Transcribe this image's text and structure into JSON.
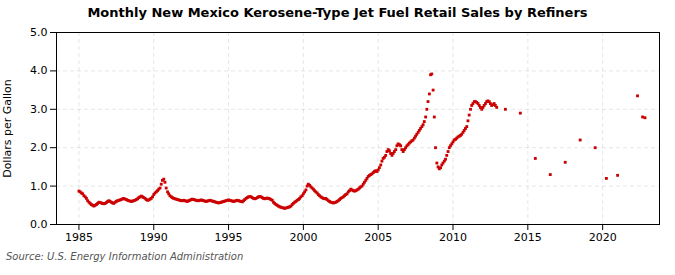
{
  "chart_data": {
    "type": "scatter",
    "title": "Monthly New Mexico Kerosene-Type Jet Fuel Retail Sales by Refiners",
    "ylabel": "Dollars per Gallon",
    "source": "Source: U.S. Energy Information Administration",
    "xlim": [
      1983.5,
      2023.8
    ],
    "ylim": [
      0.0,
      5.0
    ],
    "xticks": [
      1985,
      1990,
      1995,
      2000,
      2005,
      2010,
      2015,
      2020
    ],
    "yticks": [
      {
        "value": 0.0,
        "label": "0.0"
      },
      {
        "value": 1.0,
        "label": "1.0"
      },
      {
        "value": 2.0,
        "label": "2.0"
      },
      {
        "value": 3.0,
        "label": "3.0"
      },
      {
        "value": 4.0,
        "label": "4.0"
      },
      {
        "value": 5.0,
        "label": "5.0"
      }
    ],
    "grid": true,
    "color": "#cc0000",
    "marker": "square",
    "x": [
      1985.0,
      1985.08,
      1985.17,
      1985.25,
      1985.33,
      1985.42,
      1985.5,
      1985.58,
      1985.67,
      1985.75,
      1985.83,
      1985.92,
      1986.0,
      1986.08,
      1986.17,
      1986.25,
      1986.33,
      1986.42,
      1986.5,
      1986.58,
      1986.67,
      1986.75,
      1986.83,
      1986.92,
      1987.0,
      1987.08,
      1987.17,
      1987.25,
      1987.33,
      1987.42,
      1987.5,
      1987.58,
      1987.67,
      1987.75,
      1987.83,
      1987.92,
      1988.0,
      1988.08,
      1988.17,
      1988.25,
      1988.33,
      1988.42,
      1988.5,
      1988.58,
      1988.67,
      1988.75,
      1988.83,
      1988.92,
      1989.0,
      1989.08,
      1989.17,
      1989.25,
      1989.33,
      1989.42,
      1989.5,
      1989.58,
      1989.67,
      1989.75,
      1989.83,
      1989.92,
      1990.0,
      1990.08,
      1990.17,
      1990.25,
      1990.33,
      1990.42,
      1990.5,
      1990.58,
      1990.67,
      1990.75,
      1990.83,
      1990.92,
      1991.0,
      1991.08,
      1991.17,
      1991.25,
      1991.33,
      1991.42,
      1991.5,
      1991.58,
      1991.67,
      1991.75,
      1991.83,
      1991.92,
      1992.0,
      1992.08,
      1992.17,
      1992.25,
      1992.33,
      1992.42,
      1992.5,
      1992.58,
      1992.67,
      1992.75,
      1992.83,
      1992.92,
      1993.0,
      1993.08,
      1993.17,
      1993.25,
      1993.33,
      1993.42,
      1993.5,
      1993.58,
      1993.67,
      1993.75,
      1993.83,
      1993.92,
      1994.0,
      1994.08,
      1994.17,
      1994.25,
      1994.33,
      1994.42,
      1994.5,
      1994.58,
      1994.67,
      1994.75,
      1994.83,
      1994.92,
      1995.0,
      1995.08,
      1995.17,
      1995.25,
      1995.33,
      1995.42,
      1995.5,
      1995.58,
      1995.67,
      1995.75,
      1995.83,
      1995.92,
      1996.0,
      1996.08,
      1996.17,
      1996.25,
      1996.33,
      1996.42,
      1996.5,
      1996.58,
      1996.67,
      1996.75,
      1996.83,
      1996.92,
      1997.0,
      1997.08,
      1997.17,
      1997.25,
      1997.33,
      1997.42,
      1997.5,
      1997.58,
      1997.67,
      1997.75,
      1997.83,
      1997.92,
      1998.0,
      1998.08,
      1998.17,
      1998.25,
      1998.33,
      1998.42,
      1998.5,
      1998.58,
      1998.67,
      1998.75,
      1998.83,
      1998.92,
      1999.0,
      1999.08,
      1999.17,
      1999.25,
      1999.33,
      1999.42,
      1999.5,
      1999.58,
      1999.67,
      1999.75,
      1999.83,
      1999.92,
      2000.0,
      2000.08,
      2000.17,
      2000.25,
      2000.33,
      2000.42,
      2000.5,
      2000.58,
      2000.67,
      2000.75,
      2000.83,
      2000.92,
      2001.0,
      2001.08,
      2001.17,
      2001.25,
      2001.33,
      2001.42,
      2001.5,
      2001.58,
      2001.67,
      2001.75,
      2001.83,
      2001.92,
      2002.0,
      2002.08,
      2002.17,
      2002.25,
      2002.33,
      2002.42,
      2002.5,
      2002.58,
      2002.67,
      2002.75,
      2002.83,
      2002.92,
      2003.0,
      2003.08,
      2003.17,
      2003.25,
      2003.33,
      2003.42,
      2003.5,
      2003.58,
      2003.67,
      2003.75,
      2003.83,
      2003.92,
      2004.0,
      2004.08,
      2004.17,
      2004.25,
      2004.33,
      2004.42,
      2004.5,
      2004.58,
      2004.67,
      2004.75,
      2004.83,
      2004.92,
      2005.0,
      2005.08,
      2005.17,
      2005.25,
      2005.33,
      2005.42,
      2005.5,
      2005.58,
      2005.67,
      2005.75,
      2005.83,
      2005.92,
      2006.0,
      2006.08,
      2006.17,
      2006.25,
      2006.33,
      2006.42,
      2006.5,
      2006.58,
      2006.67,
      2006.75,
      2006.83,
      2006.92,
      2007.0,
      2007.08,
      2007.17,
      2007.25,
      2007.33,
      2007.42,
      2007.5,
      2007.58,
      2007.67,
      2007.75,
      2007.83,
      2007.92,
      2008.0,
      2008.08,
      2008.17,
      2008.25,
      2008.33,
      2008.42,
      2008.5,
      2008.58,
      2008.67,
      2008.75,
      2008.83,
      2008.92,
      2009.0,
      2009.08,
      2009.17,
      2009.25,
      2009.33,
      2009.42,
      2009.5,
      2009.58,
      2009.67,
      2009.75,
      2009.83,
      2009.92,
      2010.0,
      2010.08,
      2010.17,
      2010.25,
      2010.33,
      2010.42,
      2010.5,
      2010.58,
      2010.67,
      2010.75,
      2010.83,
      2010.92,
      2011.0,
      2011.08,
      2011.17,
      2011.25,
      2011.33,
      2011.42,
      2011.5,
      2011.58,
      2011.67,
      2011.75,
      2011.83,
      2011.92,
      2012.0,
      2012.08,
      2012.17,
      2012.25,
      2012.33,
      2012.42,
      2012.5,
      2012.58,
      2012.67,
      2012.75,
      2012.83,
      2012.92,
      2013.5,
      2014.5,
      2015.5,
      2016.5,
      2017.5,
      2018.5,
      2019.5,
      2020.25,
      2021.0,
      2022.33,
      2022.67,
      2022.83
    ],
    "values": [
      0.87,
      0.85,
      0.82,
      0.8,
      0.75,
      0.72,
      0.68,
      0.62,
      0.58,
      0.55,
      0.52,
      0.5,
      0.48,
      0.5,
      0.52,
      0.55,
      0.58,
      0.57,
      0.56,
      0.55,
      0.54,
      0.55,
      0.57,
      0.6,
      0.62,
      0.6,
      0.58,
      0.56,
      0.55,
      0.58,
      0.6,
      0.62,
      0.63,
      0.64,
      0.65,
      0.67,
      0.68,
      0.66,
      0.65,
      0.63,
      0.62,
      0.61,
      0.6,
      0.61,
      0.62,
      0.63,
      0.65,
      0.67,
      0.7,
      0.72,
      0.74,
      0.72,
      0.7,
      0.68,
      0.65,
      0.63,
      0.64,
      0.66,
      0.68,
      0.72,
      0.78,
      0.82,
      0.85,
      0.88,
      0.92,
      0.95,
      1.05,
      1.15,
      1.18,
      1.1,
      0.95,
      0.85,
      0.8,
      0.75,
      0.72,
      0.7,
      0.68,
      0.67,
      0.66,
      0.65,
      0.64,
      0.63,
      0.62,
      0.62,
      0.63,
      0.62,
      0.61,
      0.6,
      0.62,
      0.63,
      0.65,
      0.66,
      0.65,
      0.64,
      0.63,
      0.62,
      0.62,
      0.63,
      0.64,
      0.63,
      0.62,
      0.61,
      0.6,
      0.61,
      0.62,
      0.63,
      0.62,
      0.61,
      0.6,
      0.59,
      0.58,
      0.57,
      0.56,
      0.57,
      0.58,
      0.59,
      0.6,
      0.61,
      0.62,
      0.63,
      0.64,
      0.63,
      0.62,
      0.61,
      0.6,
      0.61,
      0.62,
      0.63,
      0.62,
      0.61,
      0.6,
      0.59,
      0.62,
      0.65,
      0.68,
      0.7,
      0.72,
      0.73,
      0.72,
      0.7,
      0.68,
      0.67,
      0.68,
      0.7,
      0.72,
      0.73,
      0.72,
      0.7,
      0.68,
      0.67,
      0.68,
      0.69,
      0.68,
      0.67,
      0.65,
      0.63,
      0.58,
      0.55,
      0.52,
      0.5,
      0.48,
      0.46,
      0.45,
      0.44,
      0.43,
      0.42,
      0.43,
      0.44,
      0.45,
      0.46,
      0.48,
      0.52,
      0.55,
      0.58,
      0.6,
      0.63,
      0.65,
      0.68,
      0.72,
      0.75,
      0.8,
      0.85,
      0.9,
      1.0,
      1.05,
      1.02,
      0.98,
      0.95,
      0.92,
      0.88,
      0.85,
      0.82,
      0.78,
      0.75,
      0.72,
      0.7,
      0.68,
      0.67,
      0.68,
      0.65,
      0.62,
      0.6,
      0.58,
      0.57,
      0.56,
      0.57,
      0.58,
      0.6,
      0.62,
      0.65,
      0.68,
      0.7,
      0.72,
      0.75,
      0.78,
      0.8,
      0.85,
      0.88,
      0.92,
      0.9,
      0.88,
      0.87,
      0.88,
      0.9,
      0.92,
      0.95,
      0.98,
      1.0,
      1.05,
      1.1,
      1.15,
      1.2,
      1.25,
      1.28,
      1.3,
      1.32,
      1.35,
      1.38,
      1.4,
      1.38,
      1.42,
      1.48,
      1.55,
      1.65,
      1.72,
      1.75,
      1.8,
      1.9,
      1.95,
      1.92,
      1.85,
      1.8,
      1.85,
      1.9,
      1.95,
      2.05,
      2.1,
      2.08,
      2.05,
      1.95,
      1.9,
      1.95,
      2.0,
      2.05,
      2.08,
      2.12,
      2.15,
      2.18,
      2.2,
      2.25,
      2.3,
      2.35,
      2.4,
      2.45,
      2.5,
      2.55,
      2.6,
      2.68,
      2.8,
      3.0,
      3.2,
      3.4,
      3.9,
      3.92,
      3.5,
      2.8,
      2.0,
      1.6,
      1.5,
      1.45,
      1.48,
      1.55,
      1.6,
      1.65,
      1.7,
      1.8,
      1.9,
      2.0,
      2.05,
      2.1,
      2.15,
      2.2,
      2.22,
      2.25,
      2.28,
      2.3,
      2.32,
      2.35,
      2.4,
      2.45,
      2.5,
      2.55,
      2.7,
      2.85,
      3.0,
      3.1,
      3.15,
      3.2,
      3.2,
      3.18,
      3.15,
      3.1,
      3.05,
      3.0,
      3.05,
      3.1,
      3.15,
      3.2,
      3.22,
      3.2,
      3.15,
      3.1,
      3.12,
      3.15,
      3.1,
      3.05,
      3.0,
      2.9,
      1.72,
      1.3,
      1.62,
      2.2,
      2.0,
      1.2,
      1.28,
      3.35,
      2.8,
      2.78
    ]
  }
}
